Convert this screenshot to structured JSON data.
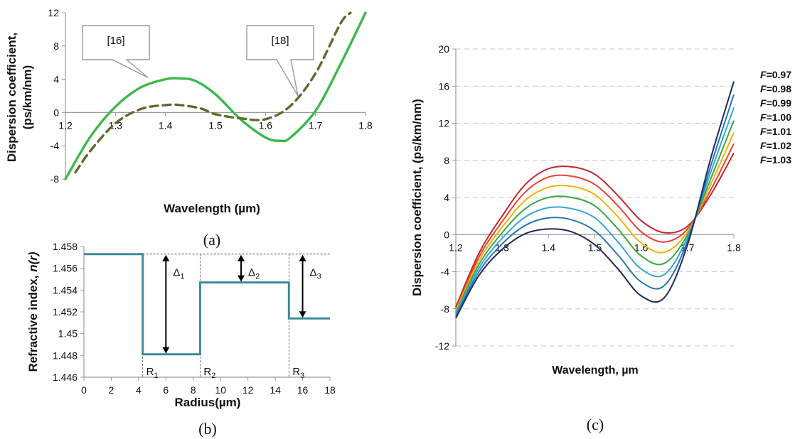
{
  "chart_data": [
    {
      "id": "a",
      "type": "line",
      "caption": "(a)",
      "xlabel": "Wavelength (µm)",
      "ylabel_line1": "Dispersion coefficient,",
      "ylabel_line2": "(ps/km/nm)",
      "xlim": [
        1.2,
        1.8
      ],
      "ylim": [
        -8,
        12
      ],
      "xticks": [
        1.2,
        1.3,
        1.4,
        1.5,
        1.6,
        1.7,
        1.8
      ],
      "xtick_labels": [
        "1.2",
        "1.3",
        "1.4",
        "1.5",
        "1.6",
        "1.7",
        "1.8"
      ],
      "yticks": [
        -8,
        -4,
        0,
        4,
        8,
        12
      ],
      "ytick_labels": [
        "-8",
        "-4",
        "0",
        "4",
        "8",
        "12"
      ],
      "grid": false,
      "series": [
        {
          "color": "#3cb84a",
          "dash": "solid",
          "x": [
            1.2,
            1.25,
            1.3,
            1.35,
            1.4,
            1.43,
            1.46,
            1.5,
            1.55,
            1.6,
            1.63,
            1.65,
            1.7,
            1.75,
            1.8
          ],
          "y": [
            -8,
            -2.9,
            0.7,
            3.0,
            4.0,
            4.1,
            3.8,
            2.2,
            -0.8,
            -3.0,
            -3.4,
            -3.0,
            0.2,
            5.8,
            12
          ]
        },
        {
          "color": "#5c6b2e",
          "dash": "dashed",
          "x": [
            1.22,
            1.25,
            1.3,
            1.35,
            1.4,
            1.43,
            1.47,
            1.5,
            1.55,
            1.6,
            1.65,
            1.7,
            1.75,
            1.77
          ],
          "y": [
            -7.2,
            -4.6,
            -1.3,
            0.4,
            0.9,
            0.9,
            0.5,
            -0.2,
            -0.7,
            -0.8,
            0.8,
            4.7,
            10.7,
            12
          ]
        }
      ],
      "callouts": [
        {
          "label": "[16]",
          "x": 1.365,
          "y": 4.2
        },
        {
          "label": "[18]",
          "x": 1.665,
          "y": 2.0
        }
      ]
    },
    {
      "id": "b",
      "type": "line",
      "caption": "(b)",
      "xlabel": "Radius(µm)",
      "ylabel_prefix": "Refractive index, ",
      "ylabel_italic": "n(r)",
      "xlim": [
        0,
        18
      ],
      "ylim": [
        1.446,
        1.458
      ],
      "xticks": [
        0,
        2,
        4,
        6,
        8,
        10,
        12,
        14,
        16,
        18
      ],
      "xtick_labels": [
        "0",
        "2",
        "4",
        "6",
        "8",
        "10",
        "12",
        "14",
        "16",
        "18"
      ],
      "yticks": [
        1.446,
        1.448,
        1.45,
        1.452,
        1.454,
        1.456,
        1.458
      ],
      "ytick_labels": [
        "1.446",
        "1.448",
        "1.45",
        "1.452",
        "1.454",
        "1.456",
        "1.458"
      ],
      "grid": false,
      "profile": {
        "color": "#3d8a9c",
        "x": [
          0,
          4.3,
          4.3,
          8.5,
          8.5,
          15,
          15,
          18
        ],
        "y": [
          1.4573,
          1.4573,
          1.4481,
          1.4481,
          1.4547,
          1.4547,
          1.4514,
          1.4514
        ]
      },
      "reference_y": 1.4573,
      "deltas": [
        {
          "label": "Δ",
          "sub": "1",
          "x": 6.0,
          "y_from": 1.4573,
          "y_to": 1.4481
        },
        {
          "label": "Δ",
          "sub": "2",
          "x": 11.5,
          "y_from": 1.4573,
          "y_to": 1.4547
        },
        {
          "label": "Δ",
          "sub": "3",
          "x": 16.0,
          "y_from": 1.4573,
          "y_to": 1.4514
        }
      ],
      "radii": [
        {
          "label": "R",
          "sub": "1",
          "x": 4.3
        },
        {
          "label": "R",
          "sub": "2",
          "x": 8.5
        },
        {
          "label": "R",
          "sub": "3",
          "x": 15
        }
      ]
    },
    {
      "id": "c",
      "type": "line",
      "caption": "(c)",
      "xlabel": "Wavelength, µm",
      "ylabel": "Dispersion coefficient, (ps/km/nm)",
      "xlim": [
        1.2,
        1.8
      ],
      "ylim": [
        -12,
        20
      ],
      "xticks": [
        1.2,
        1.3,
        1.4,
        1.5,
        1.6,
        1.7,
        1.8
      ],
      "xtick_labels": [
        "1.2",
        "1.3",
        "1.4",
        "1.5",
        "1.6",
        "1.7",
        "1.8"
      ],
      "yticks": [
        -12,
        -8,
        -4,
        0,
        4,
        8,
        12,
        16,
        20
      ],
      "ytick_labels": [
        "-12",
        "-8",
        "-4",
        "0",
        "4",
        "8",
        "12",
        "16",
        "20"
      ],
      "grid": true,
      "legend_position": "right",
      "series": [
        {
          "name_italic": "F",
          "name_value": "=0.97",
          "color": "#c4262e",
          "x": [
            1.2,
            1.25,
            1.3,
            1.35,
            1.4,
            1.45,
            1.5,
            1.55,
            1.6,
            1.65,
            1.7,
            1.75,
            1.8
          ],
          "y": [
            -7.8,
            -2.0,
            2.0,
            5.4,
            7.1,
            7.3,
            6.5,
            4.2,
            1.5,
            0.2,
            0.9,
            4.3,
            8.8
          ]
        },
        {
          "name_italic": "F",
          "name_value": "=0.98",
          "color": "#ea4335",
          "x": [
            1.2,
            1.25,
            1.3,
            1.35,
            1.4,
            1.45,
            1.5,
            1.55,
            1.6,
            1.65,
            1.7,
            1.75,
            1.8
          ],
          "y": [
            -8.0,
            -2.4,
            1.4,
            4.6,
            6.2,
            6.3,
            5.4,
            3.1,
            0.3,
            -0.8,
            0.6,
            4.8,
            9.8
          ]
        },
        {
          "name_italic": "F",
          "name_value": "=0.99",
          "color": "#f5b400",
          "x": [
            1.2,
            1.25,
            1.3,
            1.35,
            1.4,
            1.45,
            1.5,
            1.55,
            1.6,
            1.65,
            1.7,
            1.75,
            1.8
          ],
          "y": [
            -8.2,
            -2.8,
            0.8,
            3.7,
            5.1,
            5.2,
            4.3,
            1.9,
            -0.9,
            -1.9,
            0.3,
            5.4,
            11.0
          ]
        },
        {
          "name_italic": "F",
          "name_value": "=1.00",
          "color": "#3aa744",
          "x": [
            1.2,
            1.25,
            1.3,
            1.35,
            1.4,
            1.45,
            1.5,
            1.55,
            1.6,
            1.65,
            1.7,
            1.75,
            1.8
          ],
          "y": [
            -8.4,
            -3.2,
            0.2,
            2.8,
            4.0,
            4.0,
            3.1,
            0.6,
            -2.3,
            -3.1,
            0.0,
            6.0,
            12.3
          ]
        },
        {
          "name_italic": "F",
          "name_value": "=1.01",
          "color": "#36a6d9",
          "x": [
            1.2,
            1.25,
            1.3,
            1.35,
            1.4,
            1.45,
            1.5,
            1.55,
            1.6,
            1.65,
            1.7,
            1.75,
            1.8
          ],
          "y": [
            -8.6,
            -3.6,
            -0.4,
            1.9,
            2.9,
            2.8,
            1.8,
            -0.8,
            -3.7,
            -4.3,
            -0.3,
            6.7,
            13.7
          ]
        },
        {
          "name_italic": "F",
          "name_value": "=1.02",
          "color": "#2874b8",
          "x": [
            1.2,
            1.25,
            1.3,
            1.35,
            1.4,
            1.45,
            1.5,
            1.55,
            1.6,
            1.65,
            1.7,
            1.75,
            1.8
          ],
          "y": [
            -8.8,
            -4.0,
            -1.0,
            1.0,
            1.8,
            1.6,
            0.4,
            -2.2,
            -5.1,
            -5.5,
            -0.7,
            7.4,
            15.1
          ]
        },
        {
          "name_italic": "F",
          "name_value": "=1.03",
          "color": "#1f2a5c",
          "x": [
            1.2,
            1.25,
            1.3,
            1.35,
            1.4,
            1.45,
            1.5,
            1.55,
            1.6,
            1.65,
            1.7,
            1.75,
            1.8
          ],
          "y": [
            -9.0,
            -4.4,
            -1.6,
            0.1,
            0.6,
            0.3,
            -1.1,
            -3.7,
            -6.6,
            -6.8,
            -1.1,
            8.2,
            16.5
          ]
        }
      ]
    }
  ]
}
